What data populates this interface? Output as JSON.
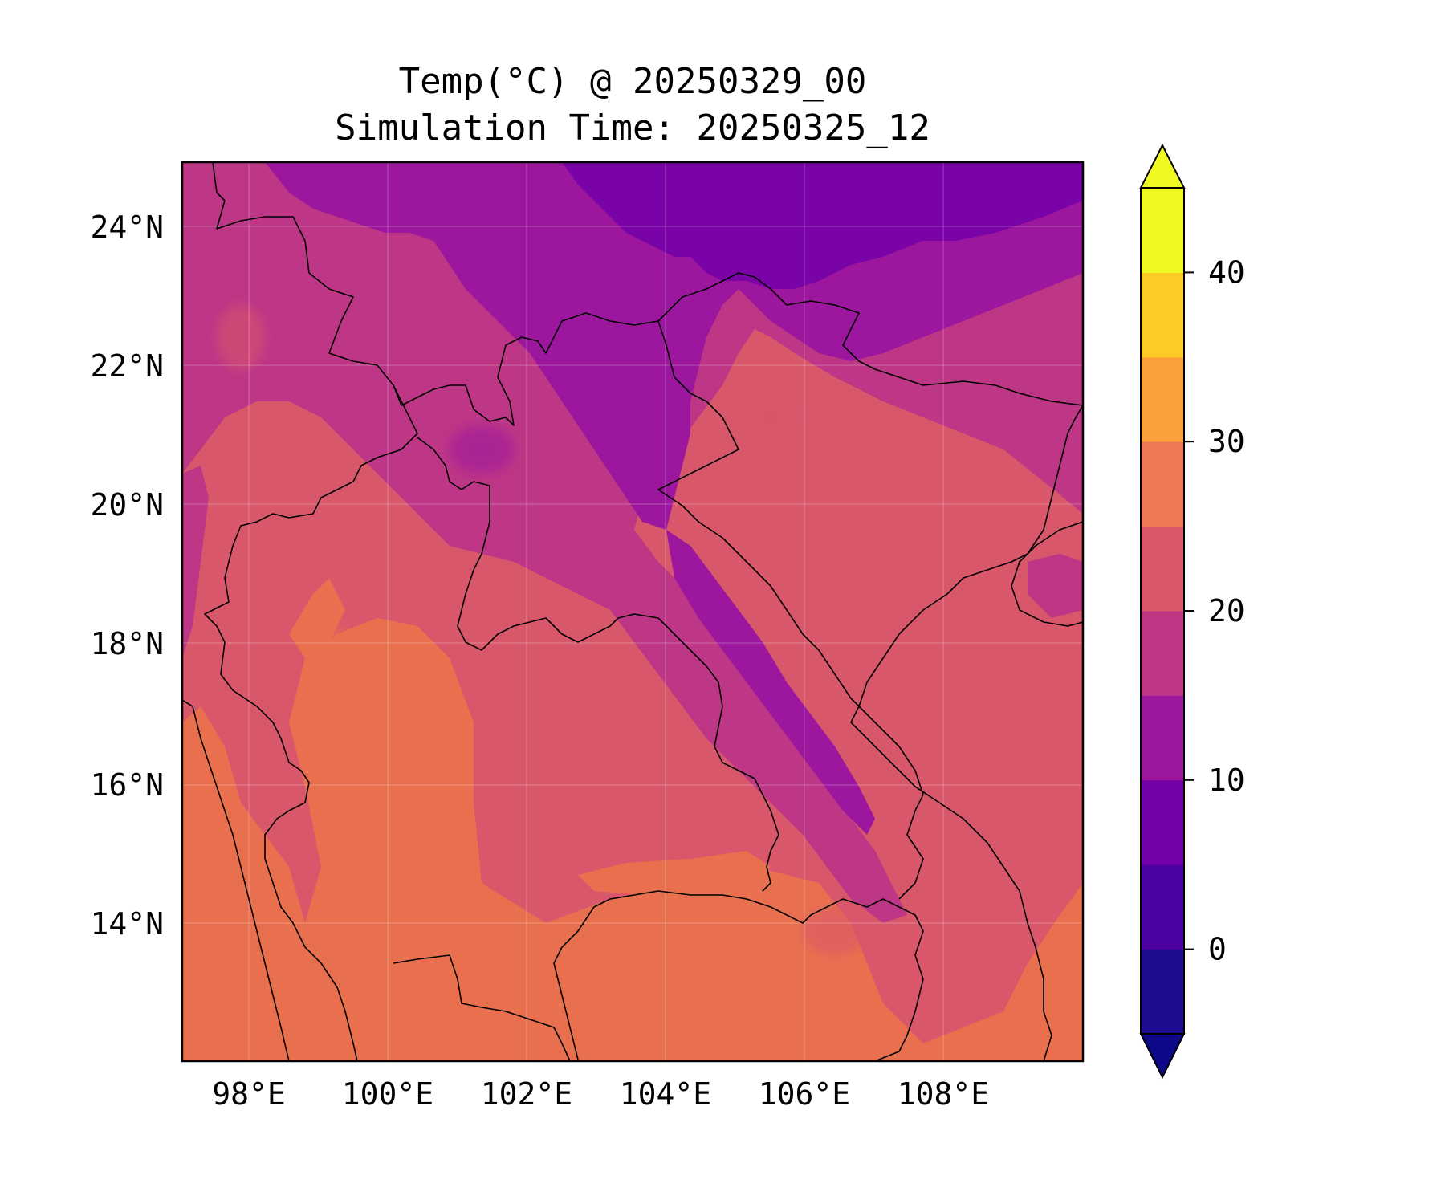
{
  "title": {
    "line1": "Temp(°C) @ 20250329_00",
    "line2": "Simulation Time: 20250325_12"
  },
  "map": {
    "lon_range": [
      97.0,
      110.0
    ],
    "lat_range": [
      12.0,
      25.0
    ],
    "lon_ticks": [
      {
        "value": 98,
        "label": "98°E"
      },
      {
        "value": 100,
        "label": "100°E"
      },
      {
        "value": 102,
        "label": "102°E"
      },
      {
        "value": 104,
        "label": "104°E"
      },
      {
        "value": 106,
        "label": "106°E"
      },
      {
        "value": 108,
        "label": "108°E"
      }
    ],
    "lat_ticks": [
      {
        "value": 24,
        "label": "24°N"
      },
      {
        "value": 22,
        "label": "22°N"
      },
      {
        "value": 20,
        "label": "20°N"
      },
      {
        "value": 18,
        "label": "18°N"
      },
      {
        "value": 16,
        "label": "16°N"
      },
      {
        "value": 14,
        "label": "14°N"
      }
    ],
    "gridlines": true
  },
  "colorbar": {
    "extend": "both",
    "levels": [
      -5,
      0,
      5,
      10,
      15,
      20,
      25,
      30,
      35,
      40,
      45
    ],
    "colors": [
      "#1f0d8f",
      "#4a02a0",
      "#7201a8",
      "#9c179e",
      "#bd3786",
      "#d8576b",
      "#ed7953",
      "#fb9f3a",
      "#fdca26",
      "#f0f921"
    ],
    "under_color": "#0d0887",
    "over_color": "#f0f921",
    "ticks": [
      {
        "value": 0,
        "label": "0"
      },
      {
        "value": 10,
        "label": "10"
      },
      {
        "value": 20,
        "label": "20"
      },
      {
        "value": 30,
        "label": "30"
      },
      {
        "value": 40,
        "label": "40"
      }
    ]
  },
  "colors": {
    "cold_north": "#7a03a8",
    "cool_highland": "#9c179e",
    "mild": "#bd3786",
    "warm": "#d8576b",
    "hot": "#e8704f",
    "hottest": "#ed7953"
  }
}
